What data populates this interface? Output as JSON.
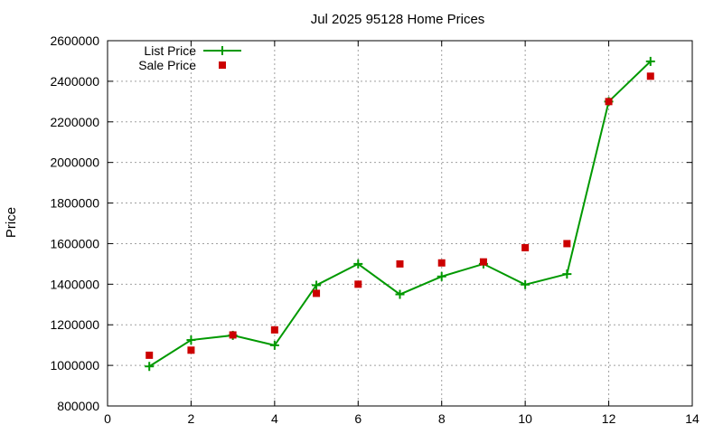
{
  "chart_data": {
    "type": "line",
    "title": "Jul 2025 95128 Home Prices",
    "xlabel": "",
    "ylabel": "Price",
    "xlim": [
      0,
      14
    ],
    "ylim": [
      800000,
      2600000
    ],
    "xticks": [
      0,
      2,
      4,
      6,
      8,
      10,
      12,
      14
    ],
    "yticks": [
      800000,
      1000000,
      1200000,
      1400000,
      1600000,
      1800000,
      2000000,
      2200000,
      2400000,
      2600000
    ],
    "grid": true,
    "legend": "top-left",
    "series": [
      {
        "name": "List Price",
        "style": "line+cross",
        "color": "#009900",
        "x": [
          1,
          2,
          3,
          4,
          5,
          6,
          7,
          8,
          9,
          10,
          11,
          12,
          13
        ],
        "y": [
          995000,
          1125000,
          1148000,
          1099000,
          1395000,
          1500000,
          1350000,
          1438000,
          1500000,
          1398000,
          1450000,
          2300000,
          2498000
        ]
      },
      {
        "name": "Sale Price",
        "style": "square",
        "color": "#cc0000",
        "x": [
          1,
          2,
          3,
          4,
          5,
          6,
          7,
          8,
          9,
          10,
          11,
          12,
          13
        ],
        "y": [
          1050000,
          1075000,
          1150000,
          1175000,
          1355000,
          1400000,
          1500000,
          1505000,
          1510000,
          1580000,
          1600000,
          2300000,
          2425000
        ]
      }
    ]
  }
}
